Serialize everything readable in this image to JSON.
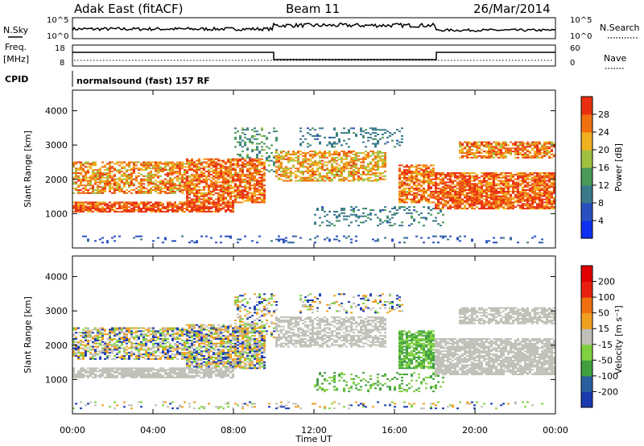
{
  "header": {
    "title": "Adak East (fitACF)",
    "beam": "Beam 11",
    "date": "26/Mar/2014"
  },
  "panels": {
    "nsky_label": "N.Sky",
    "nsky_ticks": [
      "10^5",
      "10^0"
    ],
    "nsearch_label": "N.Search",
    "freq_label_line1": "Freq.",
    "freq_label_line2": "[MHz]",
    "freq_ticks": [
      "18",
      "8"
    ],
    "nave_label": "Nave",
    "nave_ticks": [
      "60",
      "0"
    ],
    "cpid_label": "CPID",
    "cpid_text": "normalsound (fast) 157 RF"
  },
  "chart_data": [
    {
      "type": "heatmap",
      "name": "power",
      "ylabel": "Slant Range [km]",
      "ylim": [
        0,
        4600
      ],
      "yticks": [
        "1000",
        "2000",
        "3000",
        "4000"
      ],
      "xticks": [
        "00:00",
        "04:00",
        "08:00",
        "12:00",
        "16:00",
        "20:00",
        "00:00"
      ],
      "colorbar": {
        "label": "Power [dB]",
        "ticks": [
          "4",
          "8",
          "12",
          "16",
          "20",
          "24",
          "28"
        ],
        "colors": [
          "#1030f0",
          "#2a4fc0",
          "#3a7a8a",
          "#4a9a5a",
          "#a0c040",
          "#f0b020",
          "#f07010",
          "#e83010"
        ]
      }
    },
    {
      "type": "heatmap",
      "name": "velocity",
      "ylabel": "Slant Range [km]",
      "ylim": [
        0,
        4600
      ],
      "yticks": [
        "1000",
        "2000",
        "3000",
        "4000"
      ],
      "xticks": [
        "00:00",
        "04:00",
        "08:00",
        "12:00",
        "16:00",
        "20:00",
        "00:00"
      ],
      "xlabel": "Time UT",
      "colorbar": {
        "label": "Velocity [m s⁻¹]",
        "ticks": [
          "200",
          "100",
          "50",
          "15",
          "-15",
          "-50",
          "-100",
          "-200"
        ],
        "colors": [
          "#1a3ab0",
          "#2a60a0",
          "#40a040",
          "#80d040",
          "#c0c0b8",
          "#f0a020",
          "#f07010",
          "#e82010",
          "#e00000"
        ]
      }
    }
  ],
  "colors": {
    "ground_scatter": "#c0c0b8",
    "axis": "#000000"
  }
}
